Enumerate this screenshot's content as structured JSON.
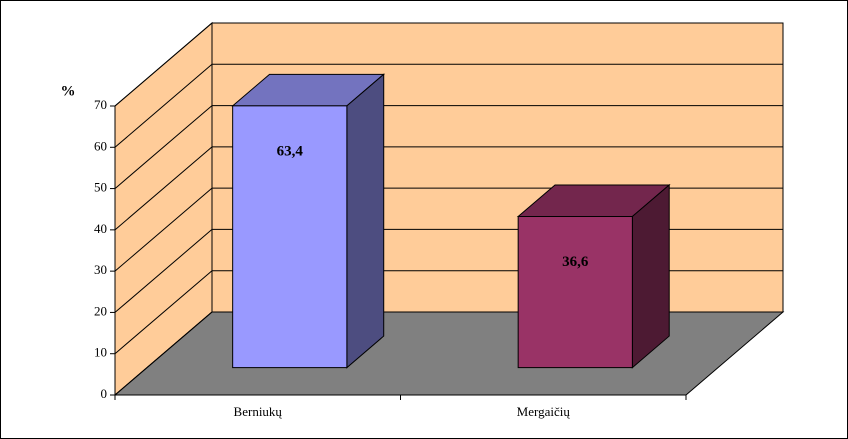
{
  "chart_data": {
    "type": "bar3d",
    "ylabel": "%",
    "categories": [
      "Berniukų",
      "Mergaičių"
    ],
    "values": [
      63.4,
      36.6
    ],
    "value_labels": [
      "63,4",
      "36,6"
    ],
    "colors": [
      "#9999ff",
      "#993366"
    ],
    "ylim": [
      0,
      70
    ],
    "yticks": [
      0,
      10,
      20,
      30,
      40,
      50,
      60,
      70
    ],
    "grid": true
  }
}
